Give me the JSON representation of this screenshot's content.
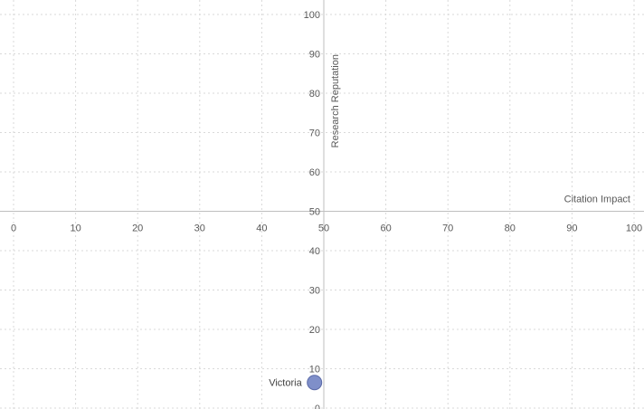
{
  "chart_data": {
    "type": "scatter",
    "title": "",
    "xlabel": "Citation Impact",
    "ylabel": "Research Reputation",
    "xlim": [
      0,
      100
    ],
    "ylim": [
      0,
      100
    ],
    "x_ticks": [
      0,
      10,
      20,
      30,
      40,
      50,
      60,
      70,
      80,
      90,
      100
    ],
    "y_ticks": [
      0,
      10,
      20,
      30,
      40,
      50,
      60,
      70,
      80,
      90,
      100
    ],
    "x_tick_labels": [
      "0",
      "10",
      "20",
      "30",
      "40",
      "50",
      "60",
      "70",
      "80",
      "90",
      "100"
    ],
    "y_tick_labels": [
      "0",
      "10",
      "20",
      "30",
      "40",
      "50",
      "60",
      "70",
      "80",
      "90",
      "100"
    ],
    "axes_cross_at": {
      "x": 50,
      "y": 50
    },
    "grid": true,
    "legend": "none",
    "points": [
      {
        "label": "Victoria",
        "x": 48.5,
        "y": 6.5
      }
    ],
    "colors": {
      "point": "#7f8fc9",
      "point_edge": "#5b6aa8",
      "grid": "#d9d9d9",
      "axis": "#bfbfbf"
    }
  }
}
